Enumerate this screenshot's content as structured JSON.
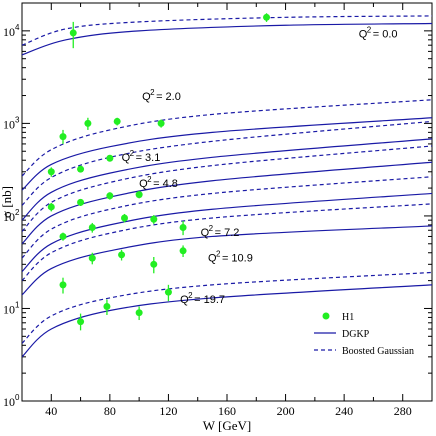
{
  "chart_data": {
    "type": "scatter",
    "xlabel": "W [GeV]",
    "ylabel": "σ [nb]",
    "xlim": [
      20,
      300
    ],
    "ylim": [
      1,
      20000
    ],
    "ylog": true,
    "x_ticks": [
      "40",
      "80",
      "120",
      "160",
      "200",
      "240",
      "280"
    ],
    "x_tick_values": [
      40,
      80,
      120,
      160,
      200,
      240,
      280
    ],
    "y_ticks": [
      {
        "base": "10",
        "exp": "0",
        "value": 1
      },
      {
        "base": "10",
        "exp": "1",
        "value": 10
      },
      {
        "base": "10",
        "exp": "2",
        "value": 100
      },
      {
        "base": "10",
        "exp": "3",
        "value": 1000
      },
      {
        "base": "10",
        "exp": "4",
        "value": 10000
      }
    ],
    "legend": {
      "placement": "bottom-right",
      "entries": [
        {
          "label": "H1",
          "style": "point"
        },
        {
          "label": "DGKP",
          "style": "solid"
        },
        {
          "label": "Boosted Gaussian",
          "style": "dashed"
        }
      ]
    },
    "colors": {
      "points": "#22ee22",
      "curves": "#1a1aa6",
      "errorbars": "#22ee22"
    },
    "curve_labels": [
      {
        "q2": "0.0",
        "label_x": 250,
        "label_y": 8500
      },
      {
        "q2": "2.0",
        "label_x": 102,
        "label_y": 1800
      },
      {
        "q2": "3.1",
        "label_x": 88,
        "label_y": 390
      },
      {
        "q2": "4.8",
        "label_x": 100,
        "label_y": 205
      },
      {
        "q2": "7.2",
        "label_x": 142,
        "label_y": 61
      },
      {
        "q2": "10.9",
        "label_x": 147,
        "label_y": 32
      },
      {
        "q2": "19.7",
        "label_x": 128,
        "label_y": 11.5
      }
    ],
    "series": [
      {
        "q2": "0.0",
        "dgkp": [
          [
            20,
            5500
          ],
          [
            50,
            8000
          ],
          [
            100,
            10000
          ],
          [
            200,
            11500
          ],
          [
            300,
            12000
          ]
        ],
        "bg": [
          [
            20,
            7000
          ],
          [
            50,
            10500
          ],
          [
            100,
            12500
          ],
          [
            200,
            14000
          ],
          [
            300,
            14500
          ]
        ]
      },
      {
        "q2": "2.0",
        "dgkp": [
          [
            20,
            190
          ],
          [
            40,
            360
          ],
          [
            80,
            560
          ],
          [
            150,
            800
          ],
          [
            300,
            1150
          ]
        ],
        "bg": [
          [
            20,
            270
          ],
          [
            40,
            520
          ],
          [
            80,
            850
          ],
          [
            150,
            1250
          ],
          [
            300,
            1800
          ]
        ]
      },
      {
        "q2": "3.1",
        "dgkp": [
          [
            20,
            90
          ],
          [
            40,
            180
          ],
          [
            80,
            290
          ],
          [
            150,
            430
          ],
          [
            300,
            680
          ]
        ],
        "bg": [
          [
            20,
            130
          ],
          [
            40,
            260
          ],
          [
            80,
            430
          ],
          [
            150,
            640
          ],
          [
            300,
            1050
          ]
        ]
      },
      {
        "q2": "4.8",
        "dgkp": [
          [
            20,
            50
          ],
          [
            40,
            100
          ],
          [
            80,
            160
          ],
          [
            150,
            240
          ],
          [
            300,
            380
          ]
        ],
        "bg": [
          [
            20,
            68
          ],
          [
            40,
            140
          ],
          [
            80,
            230
          ],
          [
            150,
            350
          ],
          [
            300,
            570
          ]
        ]
      },
      {
        "q2": "7.2",
        "dgkp": [
          [
            20,
            25
          ],
          [
            40,
            50
          ],
          [
            80,
            80
          ],
          [
            150,
            118
          ],
          [
            300,
            175
          ]
        ],
        "bg": [
          [
            20,
            35
          ],
          [
            40,
            72
          ],
          [
            80,
            118
          ],
          [
            150,
            175
          ],
          [
            300,
            265
          ]
        ]
      },
      {
        "q2": "10.9",
        "dgkp": [
          [
            20,
            14
          ],
          [
            40,
            27
          ],
          [
            80,
            42
          ],
          [
            150,
            60
          ],
          [
            300,
            78
          ]
        ],
        "bg": [
          [
            20,
            20
          ],
          [
            40,
            40
          ],
          [
            80,
            65
          ],
          [
            150,
            95
          ],
          [
            300,
            135
          ]
        ]
      },
      {
        "q2": "19.7",
        "dgkp": [
          [
            20,
            3
          ],
          [
            40,
            6
          ],
          [
            80,
            9.5
          ],
          [
            150,
            13
          ],
          [
            300,
            18
          ]
        ],
        "bg": [
          [
            20,
            4.2
          ],
          [
            40,
            8.3
          ],
          [
            80,
            13
          ],
          [
            150,
            18
          ],
          [
            300,
            24.5
          ]
        ]
      }
    ],
    "points": [
      {
        "x": 55,
        "y": 9500,
        "err_lo": 6500,
        "err_hi": 12500
      },
      {
        "x": 187,
        "y": 14000,
        "err_lo": 12500,
        "err_hi": 15500
      },
      {
        "x": 48,
        "y": 720,
        "err_lo": 600,
        "err_hi": 850
      },
      {
        "x": 65,
        "y": 1000,
        "err_lo": 850,
        "err_hi": 1150
      },
      {
        "x": 85,
        "y": 1050,
        "err_lo": 950,
        "err_hi": 1150
      },
      {
        "x": 115,
        "y": 1000,
        "err_lo": 900,
        "err_hi": 1100
      },
      {
        "x": 40,
        "y": 300,
        "err_lo": 265,
        "err_hi": 335
      },
      {
        "x": 60,
        "y": 320,
        "err_lo": 295,
        "err_hi": 345
      },
      {
        "x": 80,
        "y": 420,
        "err_lo": 390,
        "err_hi": 450
      },
      {
        "x": 40,
        "y": 125,
        "err_lo": 112,
        "err_hi": 138
      },
      {
        "x": 60,
        "y": 140,
        "err_lo": 128,
        "err_hi": 152
      },
      {
        "x": 80,
        "y": 165,
        "err_lo": 150,
        "err_hi": 180
      },
      {
        "x": 100,
        "y": 170,
        "err_lo": 155,
        "err_hi": 185
      },
      {
        "x": 48,
        "y": 60,
        "err_lo": 54,
        "err_hi": 66
      },
      {
        "x": 68,
        "y": 75,
        "err_lo": 66,
        "err_hi": 84
      },
      {
        "x": 90,
        "y": 95,
        "err_lo": 85,
        "err_hi": 105
      },
      {
        "x": 110,
        "y": 92,
        "err_lo": 82,
        "err_hi": 102
      },
      {
        "x": 130,
        "y": 75,
        "err_lo": 62,
        "err_hi": 88
      },
      {
        "x": 68,
        "y": 35,
        "err_lo": 30,
        "err_hi": 40
      },
      {
        "x": 88,
        "y": 38,
        "err_lo": 33,
        "err_hi": 43
      },
      {
        "x": 110,
        "y": 30,
        "err_lo": 24,
        "err_hi": 36
      },
      {
        "x": 130,
        "y": 42,
        "err_lo": 36,
        "err_hi": 48
      },
      {
        "x": 48,
        "y": 18,
        "err_lo": 14.5,
        "err_hi": 21.5
      },
      {
        "x": 60,
        "y": 7.2,
        "err_lo": 5.8,
        "err_hi": 8.8
      },
      {
        "x": 78,
        "y": 10.5,
        "err_lo": 8.5,
        "err_hi": 12.5
      },
      {
        "x": 100,
        "y": 9,
        "err_lo": 7.5,
        "err_hi": 10.5
      },
      {
        "x": 120,
        "y": 15,
        "err_lo": 12,
        "err_hi": 18
      }
    ]
  }
}
